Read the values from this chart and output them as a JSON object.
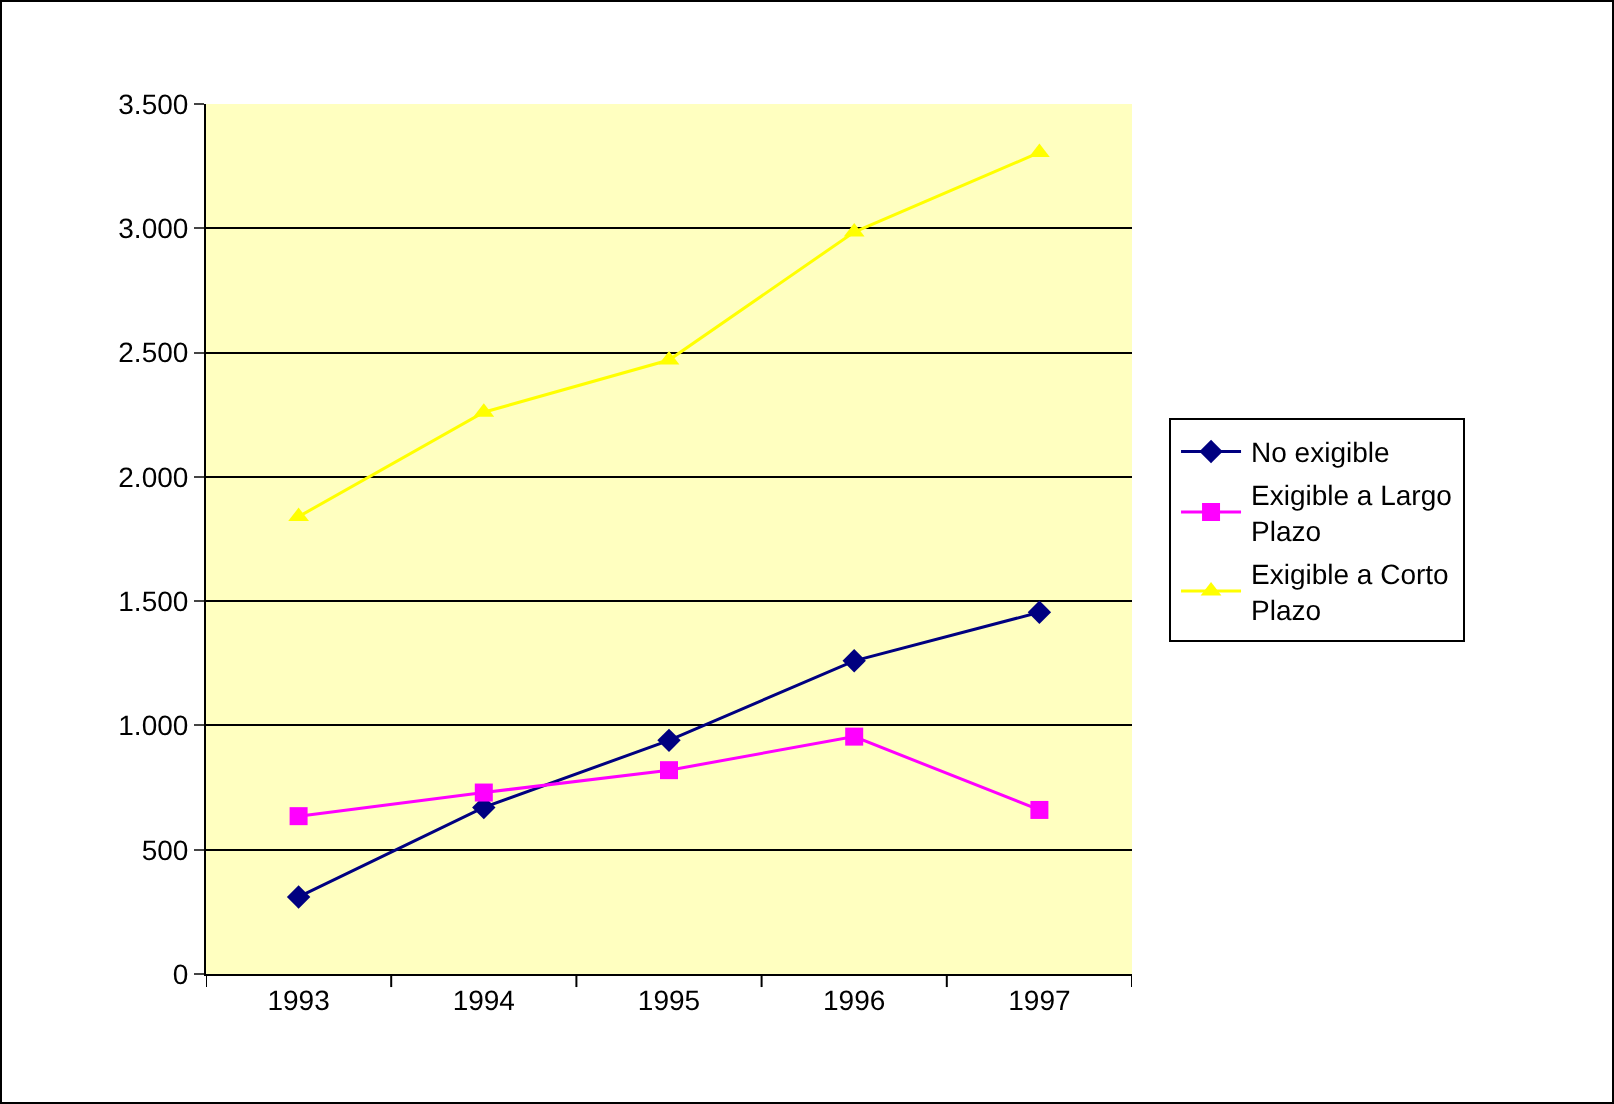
{
  "chart_data": {
    "type": "line",
    "categories": [
      "1993",
      "1994",
      "1995",
      "1996",
      "1997"
    ],
    "series": [
      {
        "name": "No exigible",
        "color": "#000080",
        "marker": "diamond",
        "values": [
          310,
          670,
          940,
          1260,
          1455
        ]
      },
      {
        "name": "Exigible a Largo Plazo",
        "color": "#ff00ff",
        "marker": "square",
        "values": [
          635,
          730,
          820,
          955,
          660
        ]
      },
      {
        "name": "Exigible a Corto Plazo",
        "color": "#ffff00",
        "marker": "triangle",
        "values": [
          1840,
          2260,
          2470,
          2985,
          3305
        ]
      }
    ],
    "ylim": [
      0,
      3500
    ],
    "yticks": [
      {
        "value": 0,
        "label": "0"
      },
      {
        "value": 500,
        "label": "500"
      },
      {
        "value": 1000,
        "label": "1.000"
      },
      {
        "value": 1500,
        "label": "1.500"
      },
      {
        "value": 2000,
        "label": "2.000"
      },
      {
        "value": 2500,
        "label": "2.500"
      },
      {
        "value": 3000,
        "label": "3.000"
      },
      {
        "value": 3500,
        "label": "3.500"
      }
    ],
    "grid": "y",
    "legend": "right",
    "line_style": "solid"
  }
}
